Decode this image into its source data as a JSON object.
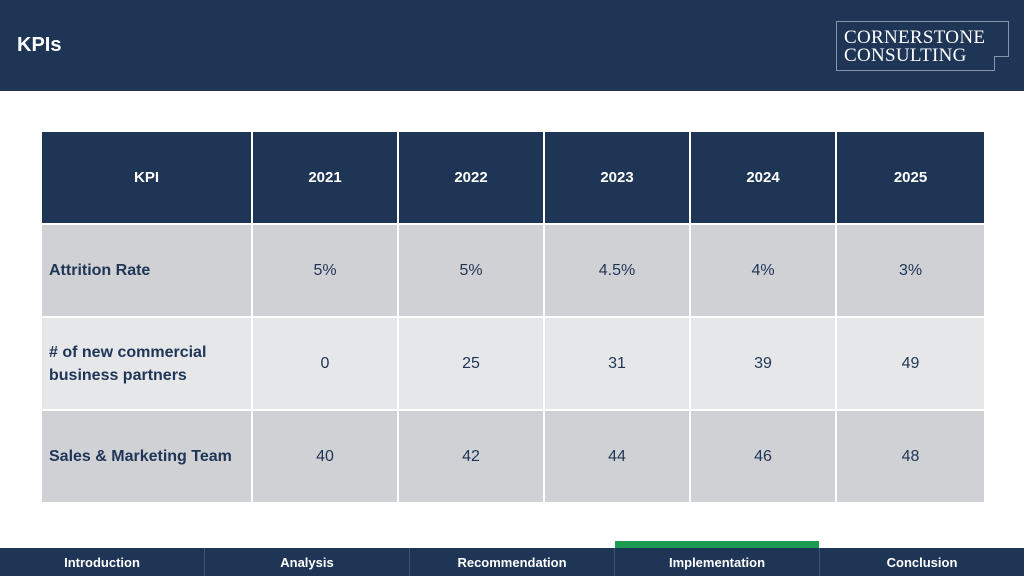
{
  "header": {
    "title": "KPIs",
    "logo_line1": "CORNERSTONE",
    "logo_line2": "CONSULTING"
  },
  "table": {
    "columns": [
      "KPI",
      "2021",
      "2022",
      "2023",
      "2024",
      "2025"
    ],
    "rows": [
      {
        "label": "Attrition Rate",
        "values": [
          "5%",
          "5%",
          "4.5%",
          "4%",
          "3%"
        ]
      },
      {
        "label": "# of new commercial business partners",
        "values": [
          "0",
          "25",
          "31",
          "39",
          "49"
        ]
      },
      {
        "label": "Sales & Marketing Team",
        "values": [
          "40",
          "42",
          "44",
          "46",
          "48"
        ]
      }
    ]
  },
  "nav": {
    "items": [
      "Introduction",
      "Analysis",
      "Recommendation",
      "Implementation",
      "Conclusion"
    ],
    "active": "Implementation"
  },
  "colors": {
    "navy": "#1f3556",
    "active_accent": "#1e9b52",
    "row_dark": "#d0d1d4",
    "row_light": "#e6e7e9"
  }
}
